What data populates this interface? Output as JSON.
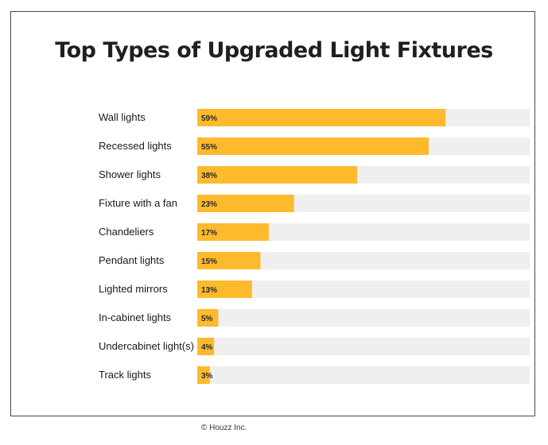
{
  "chart_data": {
    "type": "bar",
    "orientation": "horizontal",
    "title": "Top Types of Upgraded Light Fixtures",
    "categories": [
      "Wall lights",
      "Recessed lights",
      "Shower lights",
      "Fixture with a fan",
      "Chandeliers",
      "Pendant lights",
      "Lighted mirrors",
      "In-cabinet lights",
      "Undercabinet light(s)",
      "Track lights"
    ],
    "values": [
      59,
      55,
      38,
      23,
      17,
      15,
      13,
      5,
      4,
      3
    ],
    "value_labels": [
      "59%",
      "55%",
      "38%",
      "23%",
      "17%",
      "15%",
      "13%",
      "5%",
      "4%",
      "3%"
    ],
    "unit": "%",
    "xlim": [
      0,
      79
    ],
    "grid": false,
    "colors": {
      "bar": "#FDBA2C",
      "track": "#EFEFEF"
    }
  },
  "footer": {
    "copyright": "© Houzz Inc."
  }
}
